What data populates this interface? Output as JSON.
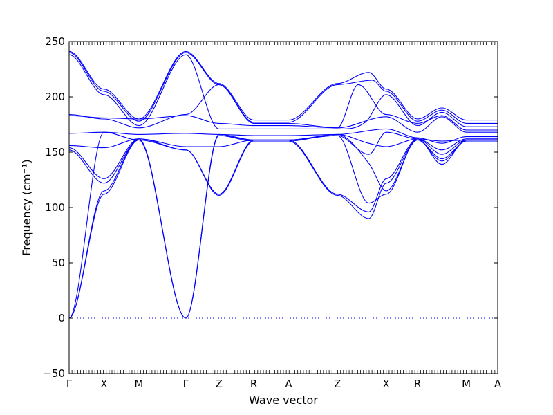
{
  "chart_data": {
    "type": "line",
    "title": "",
    "xlabel": "Wave vector",
    "ylabel": "Frequency (cm⁻¹)",
    "ylim": [
      -50,
      250
    ],
    "yticks": [
      -50,
      0,
      50,
      100,
      150,
      200,
      250
    ],
    "xlim": [
      0,
      12.3
    ],
    "grid": false,
    "legend": "none",
    "line_color": "#0000ff",
    "zero_line_color": "#0000ff",
    "segment_boundaries": [
      0,
      1,
      2,
      3.35,
      4.3,
      5.3,
      6.3,
      7.7,
      9.1,
      10.0,
      11.4,
      12.3
    ],
    "kpoints": [
      {
        "label": "Γ",
        "x": 0
      },
      {
        "label": "X",
        "x": 1
      },
      {
        "label": "M",
        "x": 2
      },
      {
        "label": "Γ",
        "x": 3.35
      },
      {
        "label": "Z",
        "x": 4.3
      },
      {
        "label": "R",
        "x": 5.3
      },
      {
        "label": "A",
        "x": 6.3
      },
      {
        "label": "Z",
        "x": 7.7
      },
      {
        "label": "X",
        "x": 9.1
      },
      {
        "label": "R",
        "x": 10.0
      },
      {
        "label": "M",
        "x": 11.4
      },
      {
        "label": "A",
        "x": 12.3
      }
    ],
    "series": [
      {
        "x": [
          0,
          1,
          2,
          3.35,
          4.3,
          5.3,
          6.3,
          7.7,
          8.6,
          9.1,
          10.0,
          10.7,
          11.4,
          12.3
        ],
        "y": [
          241,
          207,
          180,
          241,
          212,
          179,
          179,
          212,
          222,
          207,
          180,
          190,
          179,
          179
        ]
      },
      {
        "x": [
          0,
          1,
          2,
          3.35,
          4.3,
          5.3,
          6.3,
          7.7,
          8.7,
          9.1,
          10.0,
          10.7,
          11.4,
          12.3
        ],
        "y": [
          240,
          205,
          178,
          240,
          211,
          177,
          177,
          211,
          215,
          205,
          178,
          188,
          176,
          176
        ]
      },
      {
        "x": [
          0,
          1,
          2,
          3.35,
          4.3,
          5.3,
          6.3,
          7.7,
          8.5,
          9.1,
          10.0,
          10.7,
          11.4,
          12.3
        ],
        "y": [
          238,
          202,
          174,
          238,
          171,
          171,
          171,
          171,
          177,
          202,
          174,
          186,
          173,
          173
        ]
      },
      {
        "x": [
          0,
          1,
          2,
          3.35,
          4.3,
          5.3,
          6.3,
          7.7,
          8.3,
          9.1,
          10.0,
          10.7,
          11.4,
          12.3
        ],
        "y": [
          184,
          180,
          172,
          184,
          211,
          176,
          176,
          172,
          211,
          184,
          176,
          183,
          170,
          170
        ]
      },
      {
        "x": [
          0,
          1,
          2,
          3.35,
          4.3,
          5.3,
          6.3,
          7.7,
          9.1,
          10.0,
          10.7,
          11.4,
          12.3
        ],
        "y": [
          183,
          181,
          180,
          183,
          176,
          174,
          174,
          172,
          182,
          168,
          182,
          168,
          168
        ]
      },
      {
        "x": [
          0,
          1,
          2,
          3.35,
          4.3,
          5.3,
          6.3,
          7.7,
          9.1,
          10.0,
          10.7,
          11.4,
          12.3
        ],
        "y": [
          167,
          168,
          166,
          167,
          166,
          165,
          165,
          166,
          171,
          163,
          158,
          164,
          164
        ]
      },
      {
        "x": [
          0,
          1,
          2,
          3.35,
          4.3,
          5.3,
          6.3,
          7.7,
          8.6,
          9.1,
          10.0,
          10.7,
          11.4,
          12.3
        ],
        "y": [
          156,
          154,
          162,
          155,
          155,
          161,
          161,
          166,
          158,
          155,
          162,
          152,
          162,
          162
        ]
      },
      {
        "x": [
          0,
          1,
          2,
          3.35,
          4.3,
          5.3,
          6.3,
          7.7,
          8.6,
          9.1,
          10.0,
          10.7,
          11.4,
          12.3
        ],
        "y": [
          154,
          126,
          162,
          152,
          112,
          161,
          161,
          112,
          96,
          126,
          162,
          148,
          161,
          161
        ]
      },
      {
        "x": [
          0,
          1,
          2,
          3.35,
          4.3,
          5.3,
          6.3,
          7.7,
          8.6,
          9.1,
          10.0,
          10.7,
          11.4,
          12.3
        ],
        "y": [
          152,
          122,
          161,
          152,
          111,
          160,
          160,
          111,
          90,
          122,
          161,
          144,
          160,
          160
        ]
      },
      {
        "x": [
          0,
          1,
          2,
          3.35,
          4.3,
          5.3,
          6.3,
          7.7,
          8.6,
          9.1,
          10.0,
          10.7,
          11.4,
          12.3
        ],
        "y": [
          0,
          115,
          162,
          0,
          165,
          160,
          160,
          166,
          140,
          115,
          161,
          142,
          160,
          160
        ]
      },
      {
        "x": [
          0,
          1,
          2,
          3.35,
          4.3,
          5.3,
          6.3,
          7.7,
          8.6,
          9.1,
          10.0,
          10.7,
          11.4,
          12.3
        ],
        "y": [
          0,
          112,
          161,
          0,
          165,
          161,
          161,
          165,
          104,
          112,
          162,
          139,
          161,
          161
        ]
      },
      {
        "x": [
          0,
          1,
          2,
          3.35,
          4.3,
          5.3,
          6.3,
          7.7,
          8.6,
          9.1,
          10.0,
          10.7,
          11.4,
          12.3
        ],
        "y": [
          0,
          168,
          161,
          0,
          166,
          161,
          161,
          165,
          148,
          168,
          162,
          160,
          161,
          161
        ]
      }
    ]
  }
}
